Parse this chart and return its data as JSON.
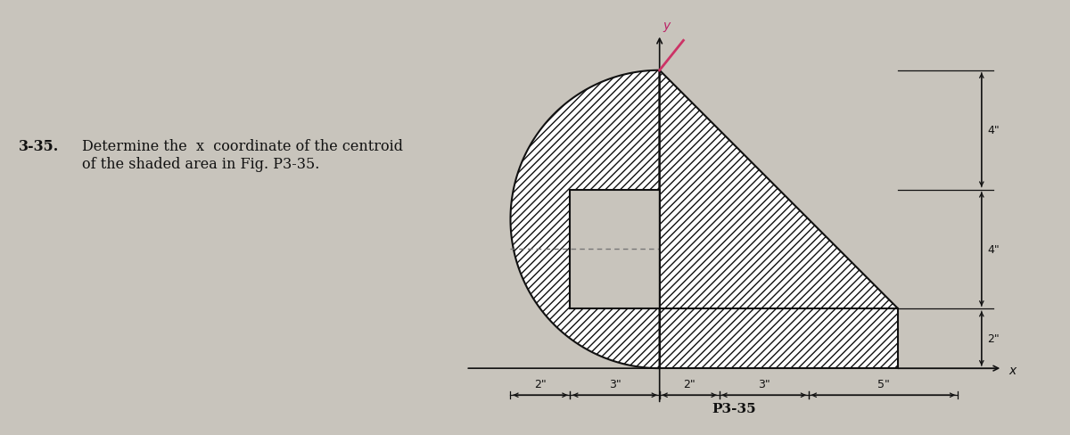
{
  "fig_bg": "#c8c4bc",
  "text_bg": "#c8c4bc",
  "hatch_color": "#333333",
  "outline_color": "#111111",
  "y_axis_label_color": "#cc3366",
  "note": "Y-axis origin at (0,0). Left edge x=-5. Semicircle center=(0,5) r=5 left half. Rectangle cutout (-3,2)-(0,6). Triangle (0,8),(8,2),(0,2). Bottom strip (0,0)-(8,2). Heights: top=8(4+4), bottom strip 2. Right edge x=8."
}
